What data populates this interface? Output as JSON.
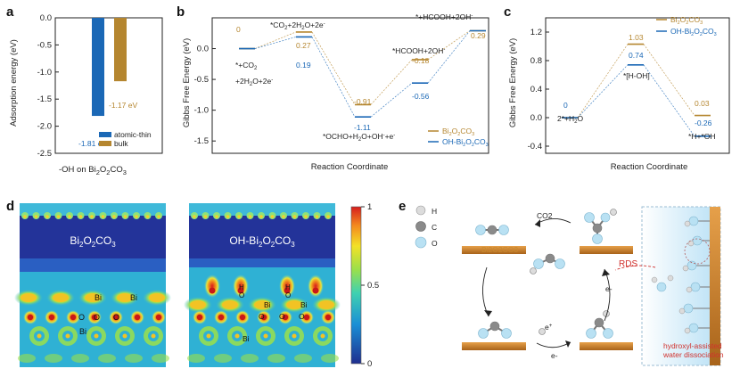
{
  "panels": {
    "a": "a",
    "b": "b",
    "c": "c",
    "d": "d",
    "e": "e"
  },
  "colors": {
    "bulk": "#b5862f",
    "atomic": "#1b68b6",
    "red_text": "#d0312d"
  },
  "panel_a": {
    "ylabel": "Adsorption energy (eV)",
    "xlabel_prefix": "-OH on Bi",
    "bar_atomic_label": "-1.81 eV",
    "bar_bulk_label": "-1.17 eV",
    "legend": [
      "atomic-thin",
      "bulk"
    ]
  },
  "panel_b": {
    "ylabel": "Gibbs Free Energy (eV)",
    "xlabel": "Reaction Coordinate",
    "labels": {
      "v0": "0",
      "v1g": "0.27",
      "v1b": "0.19",
      "v2g": "-0.91",
      "v2b": "-1.11",
      "v3g": "-0.18",
      "v3b": "-0.56",
      "v4": "0.29"
    },
    "legend": [
      "Bi2O2CO3",
      "OH-Bi2O2CO3"
    ]
  },
  "panel_c": {
    "ylabel": "Gibbs Free Energy (eV)",
    "xlabel": "Reaction Coordinate",
    "labels": {
      "v0": "0",
      "v1g": "1.03",
      "v1b": "0.74",
      "v2g": "0.03",
      "v2b": "-0.26"
    },
    "states": {
      "s0": "2*+H",
      "s1": "*[H-OH]",
      "s2": "*H+*OH"
    },
    "legend": [
      "Bi2O2CO3",
      "OH-Bi2O2CO3"
    ]
  },
  "panel_d": {
    "map1_title": "Bi2O2CO3",
    "map2_title": "OH-Bi2O2CO3",
    "atoms": {
      "bi": "Bi",
      "o": "O",
      "h": "H"
    },
    "colorbar": [
      "1",
      "0.5",
      "0"
    ]
  },
  "panel_e": {
    "legend": {
      "h": "H",
      "c": "C",
      "o": "O"
    },
    "substrate": "Bi2O2CO3",
    "co2": "CO2",
    "rds": "RDS",
    "electron": "e-",
    "footnote_line1": "hydroxyl-assisted",
    "footnote_line2": "water dissociation"
  },
  "chart_data": [
    {
      "type": "bar",
      "title": "",
      "xlabel": "-OH on Bi2O2CO3",
      "ylabel": "Adsorption energy (eV)",
      "ylim": [
        -2.5,
        0
      ],
      "series": [
        {
          "name": "atomic-thin",
          "values": [
            -1.81
          ]
        },
        {
          "name": "bulk",
          "values": [
            -1.17
          ]
        }
      ],
      "legend_position": "bottom-right"
    },
    {
      "type": "line",
      "xlabel": "Reaction Coordinate",
      "ylabel": "Gibbs Free Energy (eV)",
      "ylim": [
        -1.7,
        0.5
      ],
      "categories": [
        "*+CO2+2H2O+2e-",
        "*CO2+2H2O+2e-",
        "*OCHO+H2O+OH-+e-",
        "*HCOOH+2OH-",
        "*+HCOOH+2OH-"
      ],
      "series": [
        {
          "name": "Bi2O2CO3",
          "values": [
            0,
            0.27,
            -0.91,
            -0.18,
            0.29
          ]
        },
        {
          "name": "OH-Bi2O2CO3",
          "values": [
            0,
            0.19,
            -1.11,
            -0.56,
            0.29
          ]
        }
      ],
      "legend_position": "bottom-right"
    },
    {
      "type": "line",
      "xlabel": "Reaction Coordinate",
      "ylabel": "Gibbs Free Energy (eV)",
      "ylim": [
        -0.5,
        1.4
      ],
      "categories": [
        "2*+H2O",
        "*[H-OH]",
        "*H+*OH"
      ],
      "series": [
        {
          "name": "Bi2O2CO3",
          "values": [
            0,
            1.03,
            0.03
          ]
        },
        {
          "name": "OH-Bi2O2CO3",
          "values": [
            0,
            0.74,
            -0.26
          ]
        }
      ],
      "legend_position": "top-right"
    }
  ]
}
